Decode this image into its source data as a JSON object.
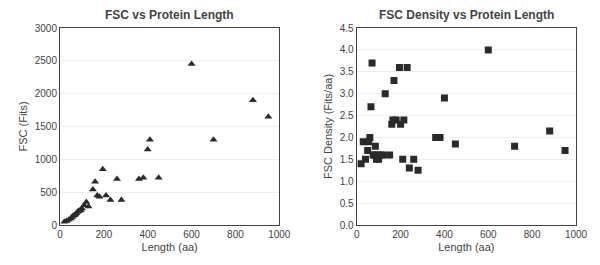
{
  "chart_data": [
    {
      "type": "scatter",
      "title": "FSC vs Protein Length",
      "x_label": "Length (aa)",
      "y_label": "FSC (Fits)",
      "x": [
        20,
        30,
        40,
        50,
        55,
        60,
        65,
        70,
        75,
        80,
        85,
        90,
        95,
        100,
        110,
        120,
        130,
        150,
        160,
        170,
        180,
        195,
        210,
        230,
        260,
        280,
        360,
        380,
        400,
        410,
        450,
        600,
        700,
        880,
        950
      ],
      "values": [
        50,
        60,
        80,
        100,
        120,
        140,
        150,
        160,
        180,
        200,
        210,
        220,
        230,
        250,
        300,
        350,
        280,
        540,
        660,
        450,
        430,
        850,
        450,
        380,
        700,
        380,
        700,
        720,
        1150,
        1300,
        720,
        2450,
        1300,
        1900,
        1650
      ],
      "color": "#2a2a2a",
      "marker": "triangle",
      "xlim": [
        0,
        1000
      ],
      "ylim": [
        0,
        3000
      ],
      "xticks": [
        0,
        200,
        400,
        600,
        800,
        1000
      ],
      "yticks": [
        0,
        500,
        1000,
        1500,
        2000,
        2500,
        3000
      ],
      "grid": "y"
    },
    {
      "type": "scatter",
      "title": "FSC Density vs Protein Length",
      "x_label": "Length (aa)",
      "y_label": "FSC Density (Fits/aa)",
      "x": [
        20,
        30,
        40,
        50,
        55,
        60,
        65,
        70,
        75,
        80,
        85,
        90,
        95,
        100,
        110,
        120,
        130,
        150,
        160,
        165,
        170,
        180,
        195,
        200,
        210,
        215,
        230,
        240,
        260,
        280,
        360,
        380,
        400,
        450,
        600,
        720,
        880,
        950
      ],
      "values": [
        1.4,
        1.9,
        1.5,
        1.7,
        1.9,
        2.0,
        2.7,
        3.7,
        1.6,
        1.6,
        1.8,
        1.5,
        1.6,
        1.5,
        1.6,
        1.6,
        3.0,
        1.6,
        2.3,
        2.4,
        3.3,
        2.4,
        3.6,
        2.3,
        1.5,
        2.4,
        3.6,
        1.3,
        1.5,
        1.25,
        2.0,
        2.0,
        2.9,
        1.85,
        4.0,
        1.8,
        2.15,
        1.7
      ],
      "color": "#2a2a2a",
      "marker": "square",
      "xlim": [
        0,
        1000
      ],
      "ylim": [
        0,
        4.5
      ],
      "xticks": [
        0,
        200,
        400,
        600,
        800,
        1000
      ],
      "yticks": [
        {
          "value": 0,
          "label": "0.0"
        },
        0.5,
        {
          "value": 1,
          "label": "1.0"
        },
        1.5,
        {
          "value": 2,
          "label": "2.0"
        },
        2.5,
        {
          "value": 3,
          "label": "3.0"
        },
        3.5,
        {
          "value": 4,
          "label": "4.0"
        },
        4.5
      ],
      "grid": "y"
    }
  ]
}
